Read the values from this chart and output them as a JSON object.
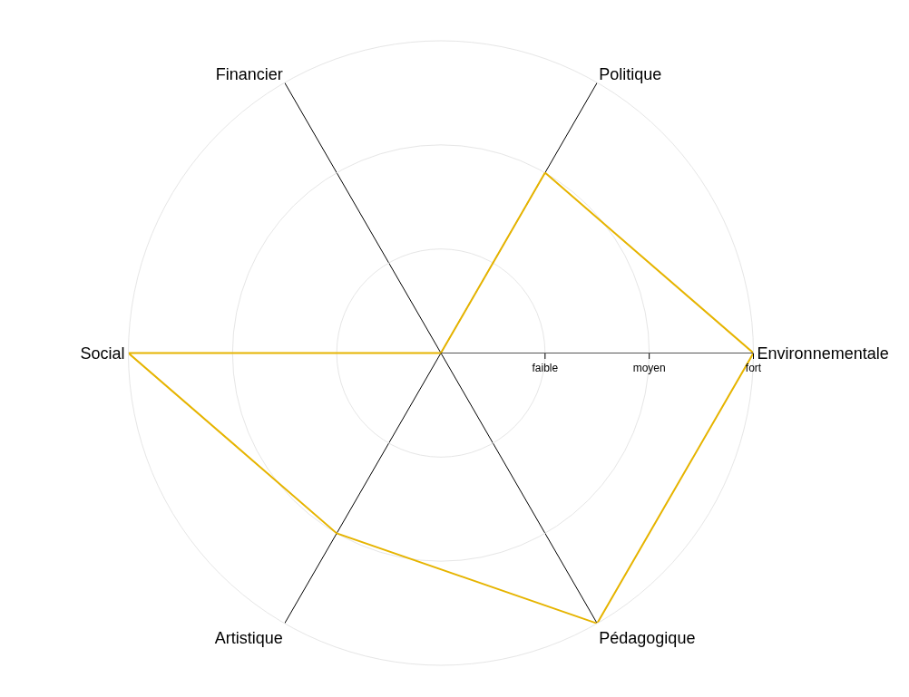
{
  "chart_data": {
    "type": "radar",
    "categories": [
      "Politique",
      "Environnementale",
      "Pédagogique",
      "Artistique",
      "Social",
      "Financier"
    ],
    "series": [
      {
        "color": "#e6b400",
        "values": [
          2,
          3,
          3,
          2,
          3,
          0
        ]
      }
    ],
    "ylim": [
      0,
      3
    ],
    "yticks": [
      {
        "value": 1,
        "label": "faible"
      },
      {
        "value": 2,
        "label": "moyen"
      },
      {
        "value": 3,
        "label": "fort"
      }
    ],
    "grid": true,
    "marker": "none",
    "line_style": "solid"
  }
}
